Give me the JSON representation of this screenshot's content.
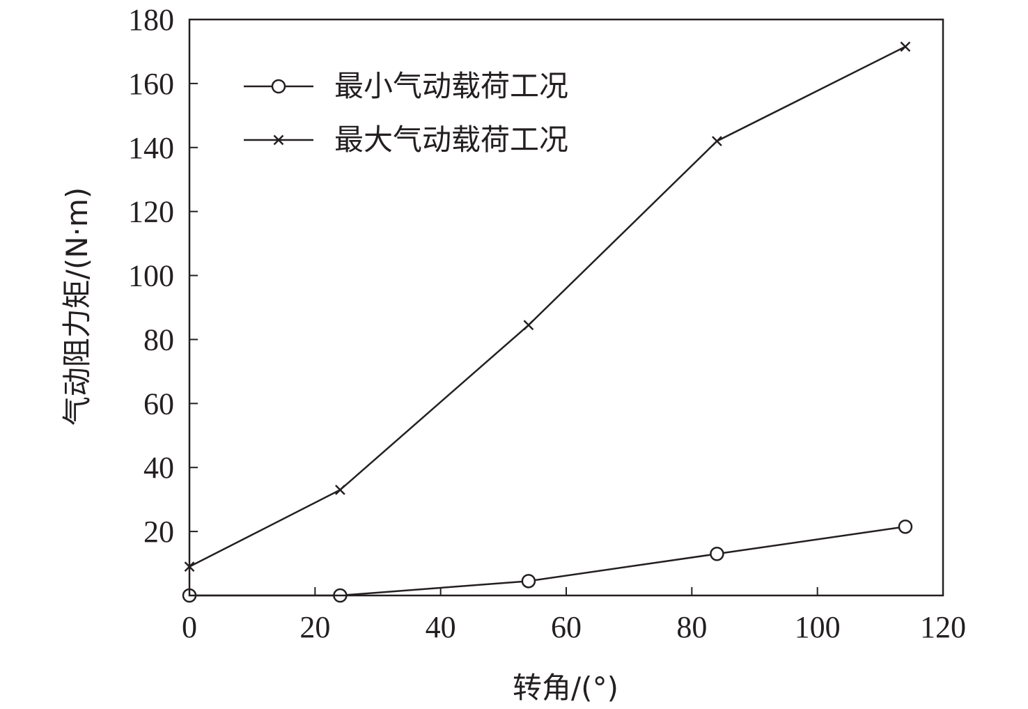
{
  "chart_data": {
    "type": "line",
    "xlabel": "转角/(°)",
    "ylabel": "气动阻力矩/(N·m)",
    "xlim": [
      0,
      120
    ],
    "ylim": [
      0,
      180
    ],
    "xticks": [
      0,
      20,
      40,
      60,
      80,
      100,
      120
    ],
    "xtick_labels": [
      "0",
      "20",
      "40",
      "60",
      "80",
      "100",
      "120"
    ],
    "yticks": [
      20,
      40,
      60,
      80,
      100,
      120,
      140,
      160,
      180
    ],
    "ytick_labels": [
      "20",
      "40",
      "60",
      "80",
      "100",
      "120",
      "140",
      "160",
      "180"
    ],
    "grid": false,
    "legend_position": "top-left",
    "series": [
      {
        "name": "最小气动载荷工况",
        "marker": "circle",
        "color": "#231f20",
        "x": [
          0,
          24,
          54,
          84,
          114
        ],
        "y": [
          0,
          0,
          4.5,
          13,
          21.5
        ]
      },
      {
        "name": "最大气动载荷工况",
        "marker": "x",
        "color": "#231f20",
        "x": [
          0,
          24,
          54,
          84,
          114
        ],
        "y": [
          9,
          33,
          84.5,
          142,
          171.5
        ]
      }
    ]
  }
}
